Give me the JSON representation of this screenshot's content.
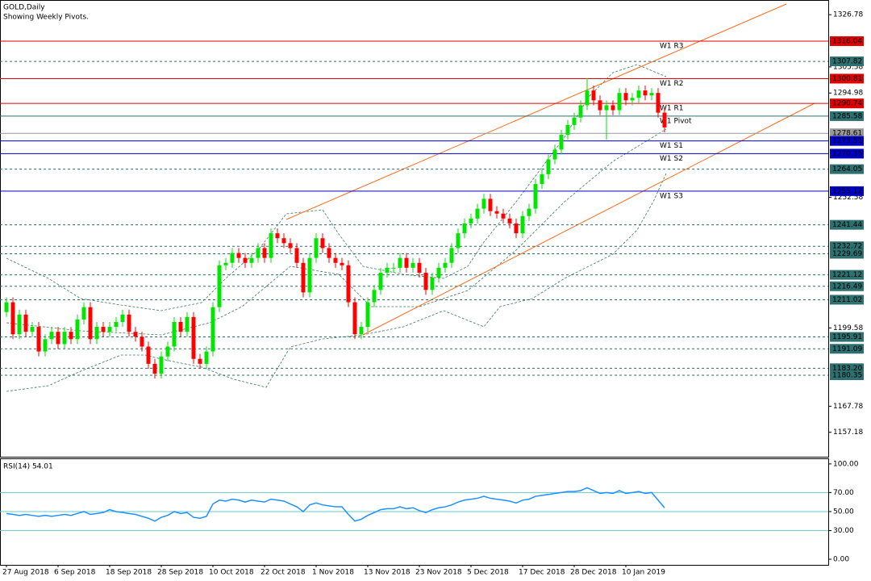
{
  "chart_data": [
    {
      "type": "candlestick",
      "title": "GOLD,Daily",
      "subtitle": "Showing Weekly Pivots.",
      "categories": [
        "27 Aug 2018",
        null,
        null,
        null,
        null,
        null,
        null,
        null,
        "6 Sep 2018",
        null,
        null,
        null,
        null,
        null,
        null,
        null,
        "18 Sep 2018",
        null,
        null,
        null,
        null,
        null,
        null,
        null,
        "28 Sep 2018",
        null,
        null,
        null,
        null,
        null,
        null,
        null,
        "10 Oct 2018",
        null,
        null,
        null,
        null,
        null,
        null,
        null,
        "22 Oct 2018",
        null,
        null,
        null,
        null,
        null,
        null,
        null,
        "1 Nov 2018",
        null,
        null,
        null,
        null,
        null,
        null,
        null,
        "13 Nov 2018",
        null,
        null,
        null,
        null,
        null,
        null,
        null,
        "23 Nov 2018",
        null,
        null,
        null,
        null,
        null,
        null,
        null,
        "5 Dec 2018",
        null,
        null,
        null,
        null,
        null,
        null,
        null,
        "17 Dec 2018",
        null,
        null,
        null,
        null,
        null,
        null,
        null,
        "28 Dec 2018",
        null,
        null,
        null,
        null,
        null,
        null,
        null,
        "10 Jan 2019",
        null,
        null,
        null,
        null,
        null,
        null
      ],
      "open": [
        1206,
        1210,
        1197,
        1205,
        1198,
        1200,
        1190,
        1195,
        1198,
        1193,
        1198,
        1195,
        1203,
        1208,
        1195,
        1200,
        1198,
        1200,
        1202,
        1205,
        1198,
        1196,
        1192,
        1185,
        1181,
        1188,
        1192,
        1202,
        1198,
        1204,
        1187,
        1185,
        1190,
        1208,
        1225,
        1226,
        1230,
        1228,
        1226,
        1228,
        1232,
        1228,
        1238,
        1236,
        1234,
        1232,
        1226,
        1214,
        1228,
        1236,
        1232,
        1228,
        1226,
        1225,
        1210,
        1197,
        1200,
        1210,
        1215,
        1222,
        1224,
        1224,
        1228,
        1224,
        1226,
        1222,
        1215,
        1220,
        1224,
        1226,
        1232,
        1238,
        1242,
        1244,
        1248,
        1252,
        1247,
        1246,
        1244,
        1242,
        1238,
        1245,
        1248,
        1258,
        1262,
        1268,
        1272,
        1278,
        1282,
        1285,
        1290,
        1296,
        1292,
        1288,
        1290,
        1288,
        1295,
        1292,
        1293,
        1296,
        1294,
        1295,
        1287
      ],
      "high": [
        1212,
        1212,
        1207,
        1207,
        1202,
        1202,
        1197,
        1200,
        1200,
        1200,
        1200,
        1205,
        1210,
        1210,
        1202,
        1202,
        1202,
        1204,
        1207,
        1207,
        1200,
        1198,
        1194,
        1187,
        1190,
        1194,
        1204,
        1204,
        1206,
        1206,
        1189,
        1192,
        1210,
        1227,
        1228,
        1232,
        1232,
        1230,
        1230,
        1234,
        1234,
        1240,
        1240,
        1238,
        1236,
        1234,
        1228,
        1230,
        1238,
        1238,
        1234,
        1230,
        1228,
        1227,
        1212,
        1202,
        1212,
        1217,
        1224,
        1226,
        1226,
        1230,
        1230,
        1228,
        1228,
        1224,
        1222,
        1226,
        1228,
        1234,
        1240,
        1244,
        1246,
        1250,
        1254,
        1254,
        1249,
        1248,
        1246,
        1244,
        1247,
        1250,
        1260,
        1264,
        1270,
        1274,
        1280,
        1284,
        1287,
        1292,
        1301,
        1298,
        1294,
        1292,
        1292,
        1297,
        1297,
        1295,
        1298,
        1298,
        1297,
        1297,
        1289
      ],
      "low": [
        1204,
        1195,
        1195,
        1196,
        1196,
        1188,
        1188,
        1193,
        1191,
        1191,
        1193,
        1193,
        1201,
        1193,
        1193,
        1196,
        1196,
        1198,
        1200,
        1196,
        1194,
        1190,
        1183,
        1179,
        1179,
        1186,
        1190,
        1196,
        1196,
        1185,
        1183,
        1183,
        1188,
        1206,
        1223,
        1224,
        1226,
        1224,
        1224,
        1226,
        1226,
        1226,
        1234,
        1232,
        1230,
        1224,
        1212,
        1212,
        1226,
        1230,
        1226,
        1224,
        1223,
        1208,
        1195,
        1195,
        1198,
        1208,
        1213,
        1220,
        1222,
        1222,
        1222,
        1222,
        1220,
        1213,
        1213,
        1218,
        1222,
        1224,
        1230,
        1236,
        1240,
        1242,
        1246,
        1245,
        1244,
        1242,
        1240,
        1236,
        1236,
        1243,
        1246,
        1256,
        1260,
        1266,
        1270,
        1276,
        1280,
        1283,
        1288,
        1290,
        1286,
        1276,
        1286,
        1286,
        1290,
        1290,
        1291,
        1292,
        1292,
        1285,
        1279
      ],
      "close": [
        1210,
        1197,
        1205,
        1198,
        1200,
        1190,
        1195,
        1198,
        1193,
        1198,
        1195,
        1203,
        1208,
        1195,
        1200,
        1198,
        1200,
        1202,
        1205,
        1198,
        1196,
        1192,
        1185,
        1181,
        1188,
        1192,
        1202,
        1198,
        1204,
        1187,
        1185,
        1190,
        1208,
        1225,
        1226,
        1230,
        1228,
        1226,
        1228,
        1232,
        1228,
        1238,
        1236,
        1234,
        1232,
        1226,
        1214,
        1228,
        1236,
        1232,
        1228,
        1226,
        1225,
        1210,
        1197,
        1200,
        1210,
        1215,
        1222,
        1224,
        1224,
        1228,
        1224,
        1226,
        1222,
        1215,
        1220,
        1224,
        1226,
        1232,
        1238,
        1242,
        1244,
        1248,
        1252,
        1247,
        1246,
        1244,
        1242,
        1238,
        1245,
        1248,
        1258,
        1262,
        1268,
        1272,
        1278,
        1282,
        1285,
        1290,
        1296,
        1292,
        1288,
        1290,
        1288,
        1295,
        1292,
        1293,
        1296,
        1294,
        1295,
        1287,
        1281
      ],
      "up_color": "#00e600",
      "down_color": "#ff0000",
      "ylim": [
        1147.26,
        1332.42
      ],
      "yticks": [
        1326.78,
        1305.58,
        1294.98,
        1252.58,
        1199.58,
        1167.78,
        1157.18
      ],
      "levels": [
        {
          "value": 1316.04,
          "label": "1316.04",
          "color": "#e00000",
          "dashed": false,
          "name": "W1 R3"
        },
        {
          "value": 1307.82,
          "label": "1307.82",
          "color": "#2e6f6f",
          "dashed": true
        },
        {
          "value": 1300.81,
          "label": "1300.81",
          "color": "#e00000",
          "dashed": false,
          "name": "W1 R2"
        },
        {
          "value": 1290.74,
          "label": "1290.74",
          "color": "#e00000",
          "dashed": false,
          "name": "W1 R1"
        },
        {
          "value": 1285.58,
          "label": "1285.58",
          "color": "#2e6f6f",
          "dashed": false,
          "name": "W1 Pivot"
        },
        {
          "value": 1278.61,
          "label": "1278.61",
          "color": "#999999",
          "dashed": false
        },
        {
          "value": 1275.51,
          "label": "1275.51",
          "color": "#0000c8",
          "dashed": false,
          "name": "W1 S1"
        },
        {
          "value": 1270.35,
          "label": "1270.35",
          "color": "#0000c8",
          "dashed": false,
          "name": "W1 S2"
        },
        {
          "value": 1264.05,
          "label": "1264.05",
          "color": "#2e6f6f",
          "dashed": true
        },
        {
          "value": 1255.12,
          "label": "1255.12",
          "color": "#0000c8",
          "dashed": false,
          "name": "W1 S3"
        },
        {
          "value": 1241.44,
          "label": "1241.44",
          "color": "#2e6f6f",
          "dashed": true
        },
        {
          "value": 1232.72,
          "label": "1232.72",
          "color": "#2e6f6f",
          "dashed": true
        },
        {
          "value": 1229.69,
          "label": "1229.69",
          "color": "#2e6f6f",
          "dashed": true
        },
        {
          "value": 1221.12,
          "label": "1221.12",
          "color": "#2e6f6f",
          "dashed": true
        },
        {
          "value": 1216.49,
          "label": "1216.49",
          "color": "#2e6f6f",
          "dashed": true
        },
        {
          "value": 1211.02,
          "label": "1211.02",
          "color": "#2e6f6f",
          "dashed": true
        },
        {
          "value": 1195.91,
          "label": "1195.91",
          "color": "#2e6f6f",
          "dashed": true
        },
        {
          "value": 1191.09,
          "label": "1191.09",
          "color": "#2e6f6f",
          "dashed": true
        },
        {
          "value": 1183.2,
          "label": "1183.20",
          "color": "#2e6f6f",
          "dashed": true
        },
        {
          "value": 1180.35,
          "label": "1180.35",
          "color": "#2e6f6f",
          "dashed": true
        }
      ]
    },
    {
      "type": "line",
      "title": "RSI(14) 54.01",
      "color": "#1e90ff",
      "values": [
        48,
        47,
        46,
        47,
        46,
        45,
        46,
        45,
        46,
        47,
        46,
        48,
        50,
        47,
        48,
        49,
        52,
        50,
        49,
        48,
        47,
        45,
        43,
        40,
        44,
        46,
        50,
        48,
        49,
        44,
        43,
        45,
        58,
        62,
        61,
        63,
        62,
        60,
        62,
        61,
        60,
        63,
        62,
        61,
        58,
        55,
        50,
        57,
        59,
        57,
        56,
        55,
        55,
        47,
        40,
        42,
        46,
        49,
        52,
        53,
        53,
        55,
        53,
        54,
        51,
        49,
        52,
        54,
        55,
        57,
        60,
        62,
        63,
        64,
        66,
        64,
        63,
        62,
        61,
        59,
        62,
        63,
        66,
        67,
        68,
        69,
        70,
        71,
        71,
        72,
        75,
        72,
        69,
        70,
        69,
        72,
        69,
        70,
        71,
        69,
        70,
        62,
        54.01
      ],
      "ylim": [
        -5.9,
        105
      ],
      "yticks": [
        {
          "value": 100,
          "label": "100.00"
        },
        {
          "value": 70,
          "label": "70.00"
        },
        {
          "value": 50,
          "label": "50.00"
        },
        {
          "value": 30,
          "label": "30.00"
        },
        {
          "value": 0,
          "label": "0.00"
        }
      ],
      "levels": [
        70,
        50,
        30
      ],
      "level_color": "#66cccc"
    }
  ]
}
